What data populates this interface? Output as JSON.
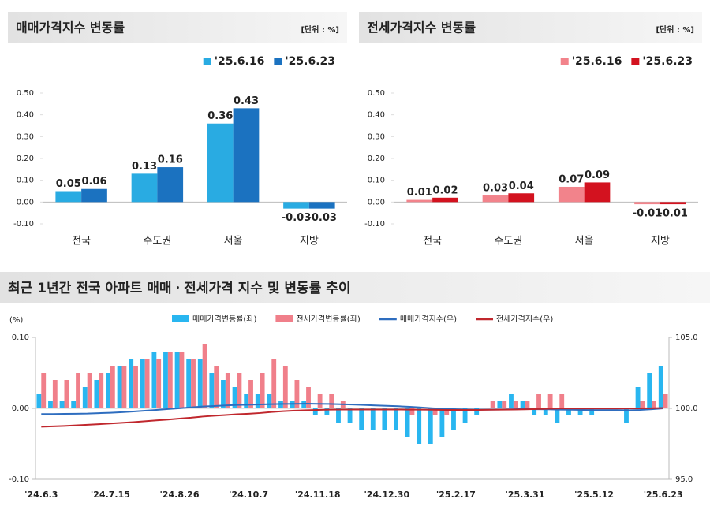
{
  "chart_data": [
    {
      "type": "bar",
      "title": "매매가격지수 변동률",
      "unit": "[단위 : %]",
      "categories": [
        "전국",
        "수도권",
        "서울",
        "지방"
      ],
      "series": [
        {
          "name": "'25.6.16",
          "color": "#29abe2",
          "values": [
            0.05,
            0.13,
            0.36,
            -0.03
          ],
          "value_labels": [
            "0.05",
            "0.13",
            "0.36",
            "-0.03"
          ]
        },
        {
          "name": "'25.6.23",
          "color": "#1b72c0",
          "values": [
            0.06,
            0.16,
            0.43,
            -0.03
          ],
          "value_labels": [
            "0.06",
            "0.16",
            "0.43",
            "-0.03"
          ]
        }
      ],
      "ylim": [
        -0.1,
        0.5
      ],
      "yticks": [
        {
          "value": 0.5,
          "label": "0.50"
        },
        {
          "value": 0.4,
          "label": "0.40"
        },
        {
          "value": 0.3,
          "label": "0.30"
        },
        {
          "value": 0.2,
          "label": "0.20"
        },
        {
          "value": 0.1,
          "label": "0.10"
        },
        {
          "value": 0,
          "label": "0.00"
        },
        {
          "value": -0.1,
          "label": "-0.10"
        }
      ]
    },
    {
      "type": "bar",
      "title": "전세가격지수 변동률",
      "unit": "[단위 : %]",
      "categories": [
        "전국",
        "수도권",
        "서울",
        "지방"
      ],
      "series": [
        {
          "name": "'25.6.16",
          "color": "#f2838b",
          "values": [
            0.01,
            0.03,
            0.07,
            -0.01
          ],
          "value_labels": [
            "0.01",
            "0.03",
            "0.07",
            "-0.01"
          ]
        },
        {
          "name": "'25.6.23",
          "color": "#d3121f",
          "values": [
            0.02,
            0.04,
            0.09,
            -0.01
          ],
          "value_labels": [
            "0.02",
            "0.04",
            "0.09",
            "-0.01"
          ]
        }
      ],
      "ylim": [
        -0.1,
        0.5
      ],
      "yticks": [
        {
          "value": 0.5,
          "label": "0.50"
        },
        {
          "value": 0.4,
          "label": "0.40"
        },
        {
          "value": 0.3,
          "label": "0.30"
        },
        {
          "value": 0.2,
          "label": "0.20"
        },
        {
          "value": 0.1,
          "label": "0.10"
        },
        {
          "value": 0,
          "label": "0.00"
        },
        {
          "value": -0.1,
          "label": "-0.10"
        }
      ]
    },
    {
      "type": "combo",
      "title": "최근 1년간 전국 아파트 매매ㆍ전세가격 지수 및 변동률 추이",
      "y_label": "(%)",
      "categories": [
        "'24.6.3",
        null,
        null,
        null,
        null,
        null,
        "'24.7.15",
        null,
        null,
        null,
        null,
        null,
        "'24.8.26",
        null,
        null,
        null,
        null,
        null,
        "'24.10.7",
        null,
        null,
        null,
        null,
        null,
        "'24.11.18",
        null,
        null,
        null,
        null,
        null,
        "'24.12.30",
        null,
        null,
        null,
        null,
        null,
        "'25.2.17",
        null,
        null,
        null,
        null,
        null,
        "'25.3.31",
        null,
        null,
        null,
        null,
        null,
        "'25.5.12",
        null,
        null,
        null,
        null,
        null,
        "'25.6.23"
      ],
      "series": [
        {
          "name": "매매가격변동률(좌)",
          "kind": "bar",
          "color": "#29b6f0",
          "values": [
            0.02,
            0.01,
            0.01,
            0.01,
            0.03,
            0.04,
            0.05,
            0.06,
            0.07,
            0.07,
            0.08,
            0.08,
            0.08,
            0.07,
            0.07,
            0.05,
            0.04,
            0.03,
            0.02,
            0.02,
            0.02,
            0.01,
            0.01,
            0.01,
            -0.01,
            -0.01,
            -0.02,
            -0.02,
            -0.03,
            -0.03,
            -0.03,
            -0.03,
            -0.04,
            -0.05,
            -0.05,
            -0.04,
            -0.03,
            -0.02,
            -0.01,
            0,
            0.01,
            0.02,
            0.01,
            -0.01,
            -0.01,
            -0.02,
            -0.01,
            -0.01,
            -0.01,
            0,
            0,
            -0.02,
            0.03,
            0.05,
            0.06
          ]
        },
        {
          "name": "전세가격변동률(좌)",
          "kind": "bar",
          "color": "#f07f8a",
          "values": [
            0.05,
            0.04,
            0.04,
            0.05,
            0.05,
            0.05,
            0.06,
            0.06,
            0.06,
            0.07,
            0.07,
            0.08,
            0.08,
            0.07,
            0.09,
            0.06,
            0.05,
            0.05,
            0.04,
            0.05,
            0.07,
            0.06,
            0.04,
            0.03,
            0.02,
            0.02,
            0.01,
            0,
            0,
            0,
            0,
            0,
            -0.01,
            0,
            -0.01,
            -0.01,
            0,
            0,
            0,
            0.01,
            0.01,
            0.01,
            0.01,
            0.02,
            0.02,
            0.02,
            0,
            0,
            0,
            0,
            0,
            0,
            0.01,
            0.01,
            0.02
          ]
        },
        {
          "name": "매매가격지수(우)",
          "kind": "line",
          "axis": "y2",
          "color": "#2e6dbf",
          "values": [
            99.6,
            99.6,
            99.61,
            99.62,
            99.63,
            99.66,
            99.69,
            99.73,
            99.78,
            99.83,
            99.89,
            99.95,
            100.01,
            100.07,
            100.13,
            100.17,
            100.21,
            100.24,
            100.26,
            100.28,
            100.3,
            100.31,
            100.32,
            100.33,
            100.32,
            100.31,
            100.29,
            100.27,
            100.24,
            100.21,
            100.18,
            100.15,
            100.11,
            100.06,
            100.01,
            99.97,
            99.94,
            99.92,
            99.91,
            99.91,
            99.92,
            99.94,
            99.95,
            99.94,
            99.93,
            99.91,
            99.9,
            99.89,
            99.88,
            99.88,
            99.88,
            99.86,
            99.89,
            99.94,
            100
          ]
        },
        {
          "name": "전세가격지수(우)",
          "kind": "line",
          "axis": "y2",
          "color": "#c0272d",
          "values": [
            98.7,
            98.73,
            98.76,
            98.8,
            98.84,
            98.88,
            98.93,
            98.98,
            99.03,
            99.09,
            99.15,
            99.21,
            99.28,
            99.34,
            99.42,
            99.48,
            99.53,
            99.58,
            99.62,
            99.67,
            99.74,
            99.8,
            99.84,
            99.87,
            99.89,
            99.91,
            99.92,
            99.92,
            99.92,
            99.92,
            99.92,
            99.92,
            99.91,
            99.91,
            99.9,
            99.89,
            99.89,
            99.89,
            99.89,
            99.9,
            99.91,
            99.92,
            99.93,
            99.95,
            99.97,
            99.99,
            99.99,
            99.99,
            99.99,
            99.99,
            99.99,
            99.99,
            100,
            100.01,
            100.03
          ]
        }
      ],
      "ylim": [
        -0.1,
        0.1
      ],
      "yticks": [
        {
          "value": 0.1,
          "label": "0.10"
        },
        {
          "value": 0,
          "label": "0.00"
        },
        {
          "value": -0.1,
          "label": "-0.10"
        }
      ],
      "y2lim": [
        95,
        105
      ],
      "y2ticks": [
        {
          "value": 105,
          "label": "105.0"
        },
        {
          "value": 100,
          "label": "100.0"
        },
        {
          "value": 95,
          "label": "95.0"
        }
      ]
    }
  ]
}
